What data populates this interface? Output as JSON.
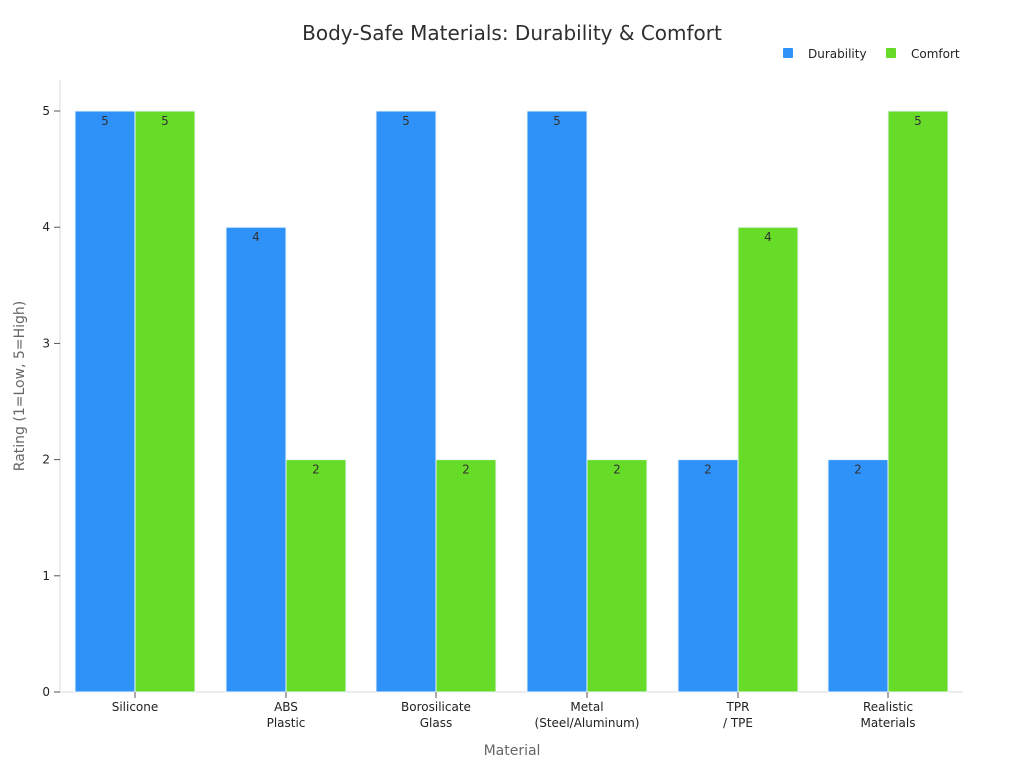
{
  "chart_data": {
    "type": "bar",
    "title": "Body-Safe Materials: Durability & Comfort",
    "xlabel": "Material",
    "ylabel": "Rating (1=Low, 5=High)",
    "ylim": [
      0,
      5
    ],
    "yticks": [
      0,
      1,
      2,
      3,
      4,
      5
    ],
    "grid": false,
    "legend_position": "top-right",
    "categories": [
      [
        "Silicone"
      ],
      [
        "ABS",
        "Plastic"
      ],
      [
        "Borosilicate",
        "Glass"
      ],
      [
        "Metal",
        "(Steel/Aluminum)"
      ],
      [
        "TPR",
        "/ TPE"
      ],
      [
        "Realistic",
        "Materials"
      ]
    ],
    "series": [
      {
        "name": "Durability",
        "color": "#2f92f8",
        "values": [
          5,
          4,
          5,
          5,
          2,
          2
        ]
      },
      {
        "name": "Comfort",
        "color": "#66db28",
        "values": [
          5,
          2,
          2,
          2,
          4,
          5
        ]
      }
    ],
    "colors": {
      "axis": "#d8d8d8",
      "tick": "#555555",
      "label": "#333333",
      "bar_outline": "#eef5ff"
    }
  }
}
